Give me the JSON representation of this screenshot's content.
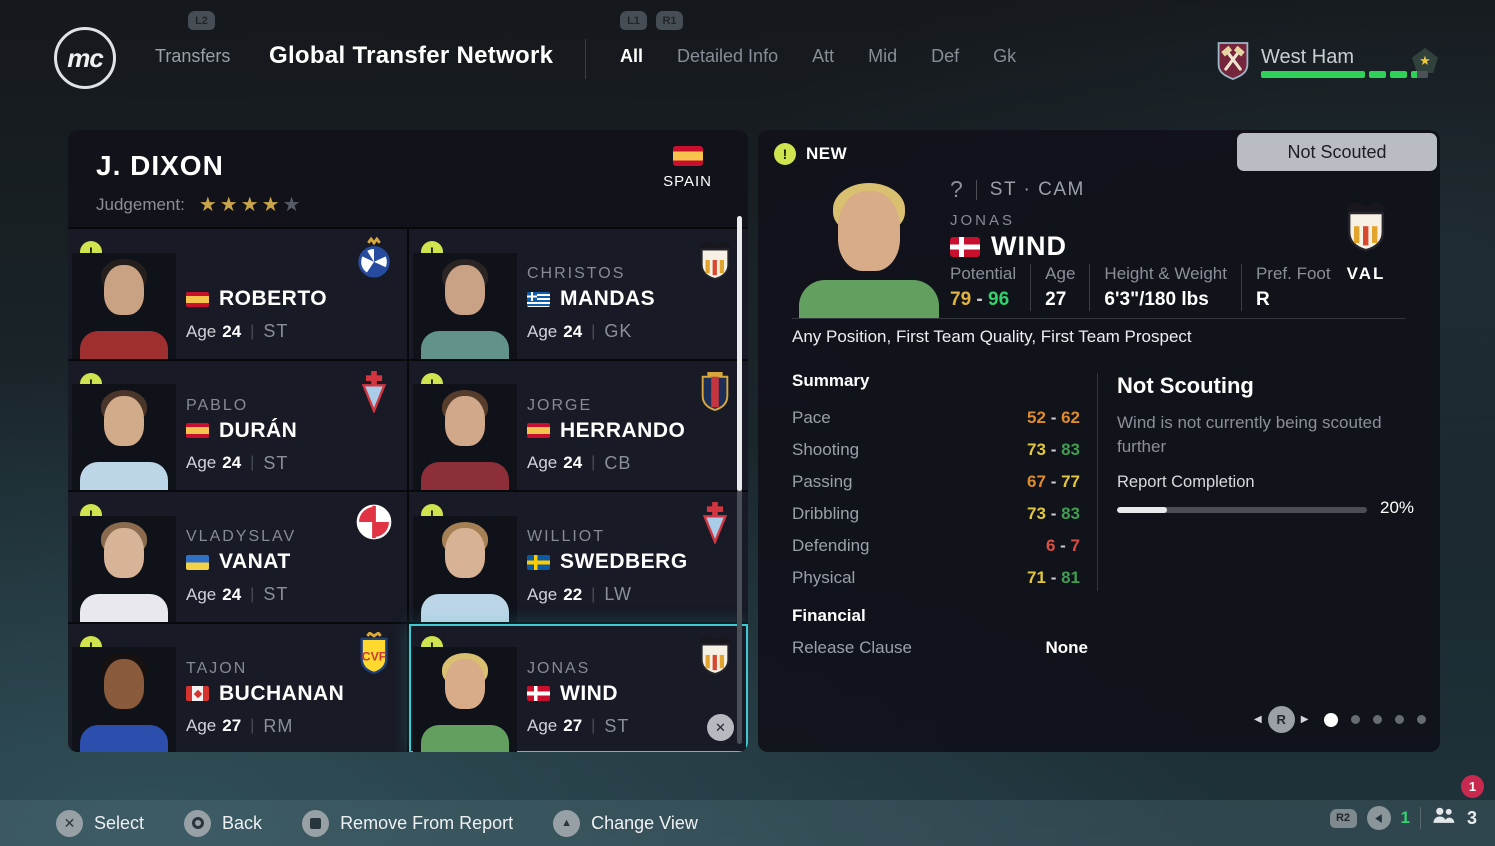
{
  "colors": {
    "accent_green": "#30d158",
    "new_icon": "#cfe44f",
    "selection": "#3fc9d0",
    "gold_star": "#c9a44a",
    "notification_red": "#c72a4e"
  },
  "header": {
    "logo_text": "mc",
    "l2_badge": "L2",
    "transfers_label": "Transfers",
    "title": "Global Transfer Network",
    "l1_badge": "L1",
    "r1_badge": "R1",
    "tabs": [
      {
        "label": "All",
        "active": true
      },
      {
        "label": "Detailed Info",
        "active": false
      },
      {
        "label": "Att",
        "active": false
      },
      {
        "label": "Mid",
        "active": false
      },
      {
        "label": "Def",
        "active": false
      },
      {
        "label": "Gk",
        "active": false
      }
    ],
    "club": {
      "name": "West Ham",
      "crest": "westham",
      "bar_segments": [
        {
          "fill": 100
        },
        {
          "fill": 100
        },
        {
          "fill": 100
        },
        {
          "fill": 35
        }
      ]
    }
  },
  "scout_panel": {
    "scout_name": "J. DIXON",
    "judgement_label": "Judgement:",
    "stars_filled": 4,
    "stars_total": 5,
    "country": "SPAIN",
    "country_flag": "spain",
    "age_label": "Age",
    "players": [
      {
        "first": "",
        "last": "ROBERTO",
        "flag": "spain",
        "age": "24",
        "position": "ST",
        "club": "espanyol",
        "selected": false,
        "avatar": {
          "skin": "#c9a183",
          "hair": "#241f1c",
          "shirt": "#a03030"
        }
      },
      {
        "first": "CHRISTOS",
        "last": "MANDAS",
        "flag": "greece",
        "age": "24",
        "position": "GK",
        "club": "valencia",
        "selected": false,
        "avatar": {
          "skin": "#c9a184",
          "hair": "#2a2522",
          "shirt": "#61938a"
        }
      },
      {
        "first": "PABLO",
        "last": "DURÁN",
        "flag": "spain",
        "age": "24",
        "position": "ST",
        "club": "celta",
        "selected": false,
        "avatar": {
          "skin": "#d2ab8a",
          "hair": "#4a352a",
          "shirt": "#bcd6e8"
        }
      },
      {
        "first": "JORGE",
        "last": "HERRANDO",
        "flag": "spain",
        "age": "24",
        "position": "CB",
        "club": "osasuna",
        "selected": false,
        "avatar": {
          "skin": "#d2a88a",
          "hair": "#563c2b",
          "shirt": "#8c2f39"
        }
      },
      {
        "first": "VLADYSLAV",
        "last": "VANAT",
        "flag": "ukraine",
        "age": "24",
        "position": "ST",
        "club": "girona",
        "selected": false,
        "avatar": {
          "skin": "#d7b397",
          "hair": "#8a6b4d",
          "shirt": "#e8e8ee"
        }
      },
      {
        "first": "WILLIOT",
        "last": "SWEDBERG",
        "flag": "sweden",
        "age": "22",
        "position": "LW",
        "club": "celta",
        "selected": false,
        "avatar": {
          "skin": "#d8b294",
          "hair": "#a58055",
          "shirt": "#bcd6e8"
        }
      },
      {
        "first": "TAJON",
        "last": "BUCHANAN",
        "flag": "canada",
        "age": "27",
        "position": "RM",
        "club": "villarreal",
        "selected": false,
        "avatar": {
          "skin": "#8a5a3c",
          "hair": "#17120f",
          "shirt": "#2c4fae"
        }
      },
      {
        "first": "JONAS",
        "last": "WIND",
        "flag": "denmark",
        "age": "27",
        "position": "ST",
        "club": "valencia",
        "selected": true,
        "avatar": {
          "skin": "#d8ab89",
          "hair": "#d8c070",
          "shirt": "#63a05f"
        }
      }
    ]
  },
  "detail_panel": {
    "new_label": "NEW",
    "status_button": "Not Scouted",
    "rating_placeholder": "?",
    "positions": "ST · CAM",
    "first_name": "JONAS",
    "last_name": "WIND",
    "nation_flag": "denmark",
    "club": "valencia",
    "club_abbr": "VAL",
    "avatar": {
      "skin": "#d8ab89",
      "hair": "#d8c070",
      "shirt": "#63a05f"
    },
    "attributes": [
      {
        "label": "Potential",
        "low": "79",
        "high": "96",
        "low_color": "#e2b33c",
        "high_color": "#2fd36a"
      },
      {
        "label": "Age",
        "value": "27"
      },
      {
        "label": "Height & Weight",
        "value": "6'3\"/180 lbs"
      },
      {
        "label": "Pref. Foot",
        "value": "R"
      }
    ],
    "traits": "Any Position, First Team Quality, First Team Prospect",
    "summary": {
      "heading": "Summary",
      "stats": [
        {
          "label": "Pace",
          "low": 52,
          "high": 62,
          "low_color": "#e08a2e",
          "high_color": "#e08a2e"
        },
        {
          "label": "Shooting",
          "low": 73,
          "high": 83,
          "low_color": "#e3c83d",
          "high_color": "#3f9e4f"
        },
        {
          "label": "Passing",
          "low": 67,
          "high": 77,
          "low_color": "#e08a2e",
          "high_color": "#e3c83d"
        },
        {
          "label": "Dribbling",
          "low": 73,
          "high": 83,
          "low_color": "#e3c83d",
          "high_color": "#3f9e4f"
        },
        {
          "label": "Defending",
          "low": 6,
          "high": 7,
          "low_color": "#d94f43",
          "high_color": "#d94f43"
        },
        {
          "label": "Physical",
          "low": 71,
          "high": 81,
          "low_color": "#e3c83d",
          "high_color": "#3f9e4f"
        }
      ]
    },
    "financial": {
      "heading": "Financial",
      "rows": [
        {
          "label": "Release Clause",
          "value": "None"
        }
      ]
    },
    "scouting": {
      "heading": "Not Scouting",
      "description": "Wind is not currently being scouted further",
      "report_label": "Report Completion",
      "report_percent_label": "20%",
      "report_percent": 20
    },
    "pagination": {
      "nav_button": "R",
      "total_dots": 5,
      "active_dot": 1
    }
  },
  "bottom_bar": {
    "actions": [
      {
        "button": "cross",
        "label": "Select"
      },
      {
        "button": "circle",
        "label": "Back"
      },
      {
        "button": "square",
        "label": "Remove From Report"
      },
      {
        "button": "triangle",
        "label": "Change View"
      }
    ],
    "notification_count": "1",
    "r2_badge": "R2",
    "voice_count": "1",
    "online_count": "3"
  }
}
